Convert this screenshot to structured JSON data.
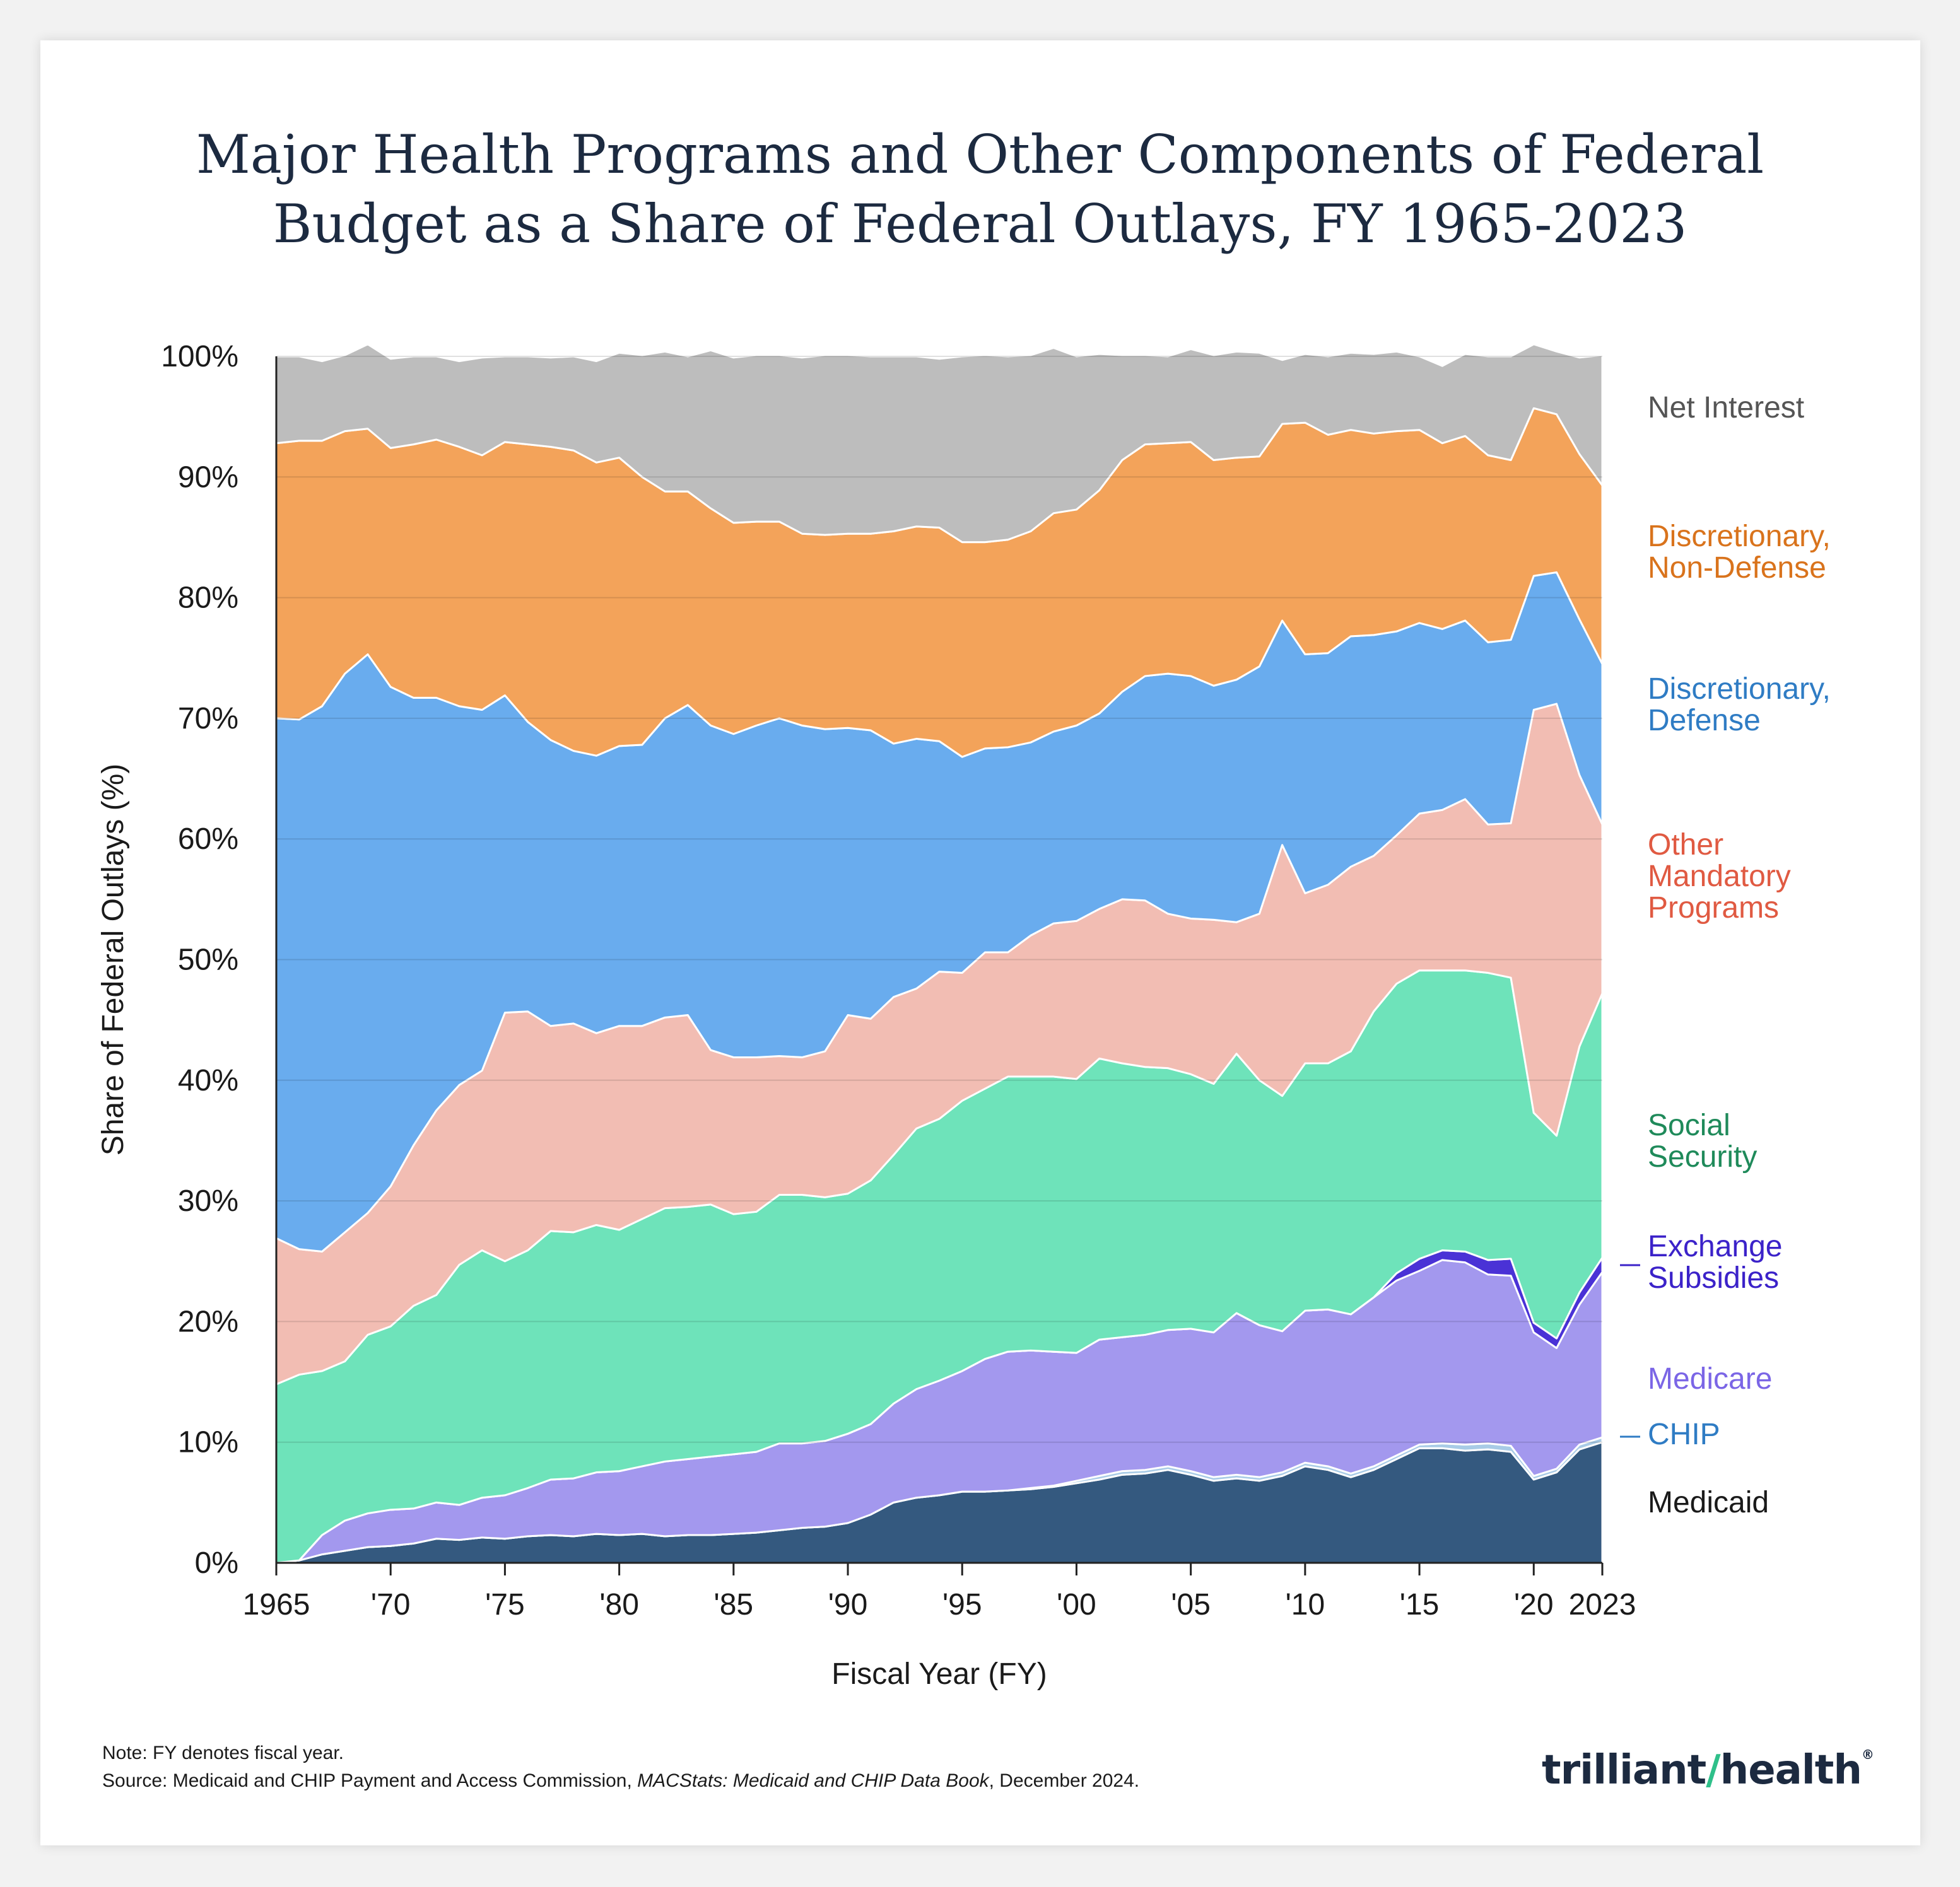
{
  "title": {
    "line1": "Major Health Programs and Other Components of Federal",
    "line2": "Budget as a Share of Federal Outlays, FY 1965-2023"
  },
  "note": {
    "line1": "Note: FY denotes fiscal year.",
    "source_prefix": "Source: Medicaid and CHIP Payment and Access Commission, ",
    "source_title": "MACStats: Medicaid and CHIP Data Book",
    "source_suffix": ", December 2024."
  },
  "logo": {
    "text_left": "trilliant",
    "text_right": "health",
    "mark": "®"
  },
  "colors": {
    "Medicaid": "#34597f",
    "CHIP": "#a8cbe6",
    "Medicare": "#a398ee",
    "Exchange Subsidies": "#4a32d6",
    "Social Security": "#6ee3ba",
    "Other Mandatory Programs": "#f2bdb3",
    "Discretionary, Defense": "#69acee",
    "Discretionary, Non-Defense": "#f3a35a",
    "Net Interest": "#bdbdbd",
    "label_Medicaid": "#1a1a1a",
    "label_CHIP": "#2f7cc4",
    "label_Medicare": "#7b66e6",
    "label_Exchange": "#3b22c9",
    "label_SocialSecurity": "#1f8a5a",
    "label_OtherMandatory": "#e05a42",
    "label_Defense": "#2f7cc4",
    "label_NonDefense": "#d9731c",
    "label_NetInterest": "#555555"
  },
  "chart_data": {
    "type": "area",
    "stacked": true,
    "title": "Major Health Programs and Other Components of Federal Budget as a Share of Federal Outlays, FY 1965-2023",
    "xlabel": "Fiscal Year (FY)",
    "ylabel": "Share of Federal Outlays (%)",
    "xlim": [
      1965,
      2023
    ],
    "ylim": [
      0,
      100
    ],
    "yticks": [
      "0%",
      "10%",
      "20%",
      "30%",
      "40%",
      "50%",
      "60%",
      "70%",
      "80%",
      "90%",
      "100%"
    ],
    "xticks": [
      {
        "value": 1965,
        "label": "1965"
      },
      {
        "value": 1970,
        "label": "'70"
      },
      {
        "value": 1975,
        "label": "'75"
      },
      {
        "value": 1980,
        "label": "'80"
      },
      {
        "value": 1985,
        "label": "'85"
      },
      {
        "value": 1990,
        "label": "'90"
      },
      {
        "value": 1995,
        "label": "'95"
      },
      {
        "value": 2000,
        "label": "'00"
      },
      {
        "value": 2005,
        "label": "'05"
      },
      {
        "value": 2010,
        "label": "'10"
      },
      {
        "value": 2015,
        "label": "'15"
      },
      {
        "value": 2020,
        "label": "'20"
      },
      {
        "value": 2023,
        "label": "2023"
      }
    ],
    "x": [
      1965,
      1966,
      1967,
      1968,
      1969,
      1970,
      1971,
      1972,
      1973,
      1974,
      1975,
      1976,
      1977,
      1978,
      1979,
      1980,
      1981,
      1982,
      1983,
      1984,
      1985,
      1986,
      1987,
      1988,
      1989,
      1990,
      1991,
      1992,
      1993,
      1994,
      1995,
      1996,
      1997,
      1998,
      1999,
      2000,
      2001,
      2002,
      2003,
      2004,
      2005,
      2006,
      2007,
      2008,
      2009,
      2010,
      2011,
      2012,
      2013,
      2014,
      2015,
      2016,
      2017,
      2018,
      2019,
      2020,
      2021,
      2022,
      2023
    ],
    "series": [
      {
        "name": "Medicaid",
        "label": "Medicaid",
        "values": [
          0,
          0.2,
          0.7,
          1.0,
          1.3,
          1.4,
          1.6,
          2.0,
          1.9,
          2.1,
          2.0,
          2.2,
          2.3,
          2.2,
          2.4,
          2.3,
          2.4,
          2.2,
          2.3,
          2.3,
          2.4,
          2.5,
          2.7,
          2.9,
          3.0,
          3.3,
          4.0,
          5.0,
          5.4,
          5.6,
          5.9,
          5.9,
          6.0,
          6.1,
          6.3,
          6.6,
          6.9,
          7.3,
          7.4,
          7.7,
          7.3,
          6.8,
          7.0,
          6.8,
          7.2,
          8.0,
          7.7,
          7.1,
          7.7,
          8.6,
          9.5,
          9.5,
          9.3,
          9.4,
          9.2,
          6.9,
          7.5,
          9.4,
          10.0
        ]
      },
      {
        "name": "CHIP",
        "label": "CHIP",
        "values": [
          0,
          0,
          0,
          0,
          0,
          0,
          0,
          0,
          0,
          0,
          0,
          0,
          0,
          0,
          0,
          0,
          0,
          0,
          0,
          0,
          0,
          0,
          0,
          0,
          0,
          0,
          0,
          0,
          0,
          0,
          0,
          0,
          0,
          0.1,
          0.1,
          0.2,
          0.3,
          0.3,
          0.3,
          0.3,
          0.3,
          0.3,
          0.3,
          0.3,
          0.3,
          0.3,
          0.3,
          0.3,
          0.3,
          0.3,
          0.3,
          0.4,
          0.5,
          0.5,
          0.5,
          0.3,
          0.3,
          0.4,
          0.4
        ]
      },
      {
        "name": "Medicare",
        "label": "Medicare",
        "values": [
          0,
          0,
          1.6,
          2.5,
          2.8,
          3.0,
          2.9,
          3.0,
          2.9,
          3.3,
          3.6,
          4.0,
          4.6,
          4.8,
          5.1,
          5.3,
          5.6,
          6.2,
          6.3,
          6.5,
          6.6,
          6.7,
          7.2,
          7.0,
          7.1,
          7.4,
          7.5,
          8.2,
          9.0,
          9.5,
          10.0,
          11.0,
          11.5,
          11.4,
          11.1,
          10.6,
          11.3,
          11.1,
          11.2,
          11.3,
          11.8,
          12.0,
          13.4,
          12.6,
          11.7,
          12.6,
          13.0,
          13.2,
          14.0,
          14.5,
          14.4,
          15.2,
          15.1,
          14.0,
          14.1,
          11.9,
          10.0,
          11.6,
          13.7
        ]
      },
      {
        "name": "Exchange Subsidies",
        "label": "Exchange Subsidies",
        "values": [
          0,
          0,
          0,
          0,
          0,
          0,
          0,
          0,
          0,
          0,
          0,
          0,
          0,
          0,
          0,
          0,
          0,
          0,
          0,
          0,
          0,
          0,
          0,
          0,
          0,
          0,
          0,
          0,
          0,
          0,
          0,
          0,
          0,
          0,
          0,
          0,
          0,
          0,
          0,
          0,
          0,
          0,
          0,
          0,
          0,
          0,
          0,
          0,
          0,
          0.6,
          1.0,
          0.8,
          0.9,
          1.2,
          1.4,
          0.8,
          0.8,
          1.0,
          1.2
        ]
      },
      {
        "name": "Social Security",
        "label": "Social Security",
        "values": [
          14.8,
          15.4,
          13.6,
          13.2,
          14.8,
          15.2,
          16.8,
          17.2,
          19.9,
          20.5,
          19.4,
          19.7,
          20.6,
          20.4,
          20.5,
          20.0,
          20.5,
          21.0,
          20.9,
          20.9,
          19.9,
          19.9,
          20.6,
          20.6,
          20.2,
          19.9,
          20.2,
          20.6,
          21.6,
          21.7,
          22.4,
          22.4,
          22.8,
          22.7,
          22.8,
          22.7,
          23.3,
          22.7,
          22.2,
          21.7,
          21.1,
          20.6,
          21.5,
          20.3,
          19.5,
          20.5,
          20.4,
          21.8,
          23.7,
          24.0,
          23.9,
          23.2,
          23.3,
          23.8,
          23.3,
          17.4,
          16.8,
          20.4,
          21.9
        ]
      },
      {
        "name": "Other Mandatory Programs",
        "label": "Other Mandatory Programs",
        "values": [
          12.1,
          10.4,
          9.9,
          10.7,
          10.1,
          11.6,
          13.3,
          15.3,
          14.9,
          14.9,
          20.6,
          19.8,
          17.0,
          17.3,
          15.9,
          16.9,
          16.0,
          15.8,
          15.9,
          12.8,
          13.0,
          12.8,
          11.5,
          11.4,
          12.1,
          14.8,
          13.4,
          13.1,
          11.6,
          12.2,
          10.6,
          11.3,
          10.3,
          11.7,
          12.7,
          13.1,
          12.4,
          13.6,
          13.8,
          12.8,
          12.9,
          13.6,
          10.9,
          13.8,
          20.8,
          14.1,
          14.8,
          15.3,
          12.9,
          12.3,
          13.0,
          13.3,
          14.2,
          12.3,
          12.8,
          33.4,
          35.8,
          22.5,
          14.0
        ]
      },
      {
        "name": "Discretionary, Defense",
        "label": "Discretionary, Defense",
        "values": [
          43.1,
          43.9,
          45.2,
          46.3,
          46.3,
          41.4,
          37.1,
          34.2,
          31.4,
          29.9,
          26.3,
          24.0,
          23.7,
          22.6,
          23.0,
          23.2,
          23.3,
          24.8,
          25.7,
          26.9,
          26.8,
          27.5,
          28.0,
          27.5,
          26.7,
          23.8,
          23.9,
          21.0,
          20.7,
          19.1,
          17.9,
          16.9,
          17.0,
          16.0,
          15.9,
          16.2,
          16.2,
          17.2,
          18.6,
          19.9,
          20.1,
          19.4,
          20.1,
          20.5,
          18.6,
          19.8,
          19.2,
          19.1,
          18.3,
          16.9,
          15.8,
          15.0,
          14.8,
          15.1,
          15.2,
          11.1,
          10.9,
          12.9,
          13.3
        ]
      },
      {
        "name": "Discretionary, Non-Defense",
        "label": "Discretionary, Non-Defense",
        "values": [
          22.8,
          23.1,
          22.0,
          20.1,
          18.7,
          19.8,
          21.0,
          21.4,
          21.5,
          21.1,
          21.0,
          23.0,
          24.3,
          24.9,
          24.3,
          23.9,
          22.2,
          18.8,
          17.7,
          18.0,
          17.5,
          16.9,
          16.3,
          15.9,
          16.1,
          16.1,
          16.3,
          17.6,
          17.6,
          17.7,
          17.8,
          17.1,
          17.2,
          17.5,
          18.1,
          17.9,
          18.5,
          19.2,
          19.2,
          19.1,
          19.4,
          18.7,
          18.4,
          17.4,
          16.3,
          19.2,
          18.1,
          17.1,
          16.7,
          16.6,
          16.0,
          15.4,
          15.3,
          15.5,
          14.9,
          13.9,
          13.1,
          13.7,
          14.8
        ]
      },
      {
        "name": "Net Interest",
        "label": "Net Interest",
        "values": [
          7.2,
          7.0,
          6.6,
          6.3,
          7.0,
          7.4,
          7.3,
          6.9,
          7.1,
          8.1,
          7.1,
          7.3,
          7.4,
          7.8,
          8.4,
          8.7,
          10.1,
          11.6,
          11.2,
          13.1,
          13.7,
          13.8,
          13.8,
          14.6,
          14.9,
          14.8,
          14.7,
          14.5,
          14.1,
          14.0,
          15.4,
          15.5,
          15.2,
          14.6,
          13.7,
          12.7,
          11.3,
          8.7,
          7.4,
          7.2,
          7.7,
          8.7,
          8.8,
          8.6,
          5.3,
          5.7,
          6.5,
          6.4,
          6.6,
          6.6,
          6.1,
          6.4,
          6.8,
          8.2,
          8.6,
          5.3,
          5.2,
          8.0,
          10.8
        ]
      }
    ],
    "legend": "right-inline"
  }
}
